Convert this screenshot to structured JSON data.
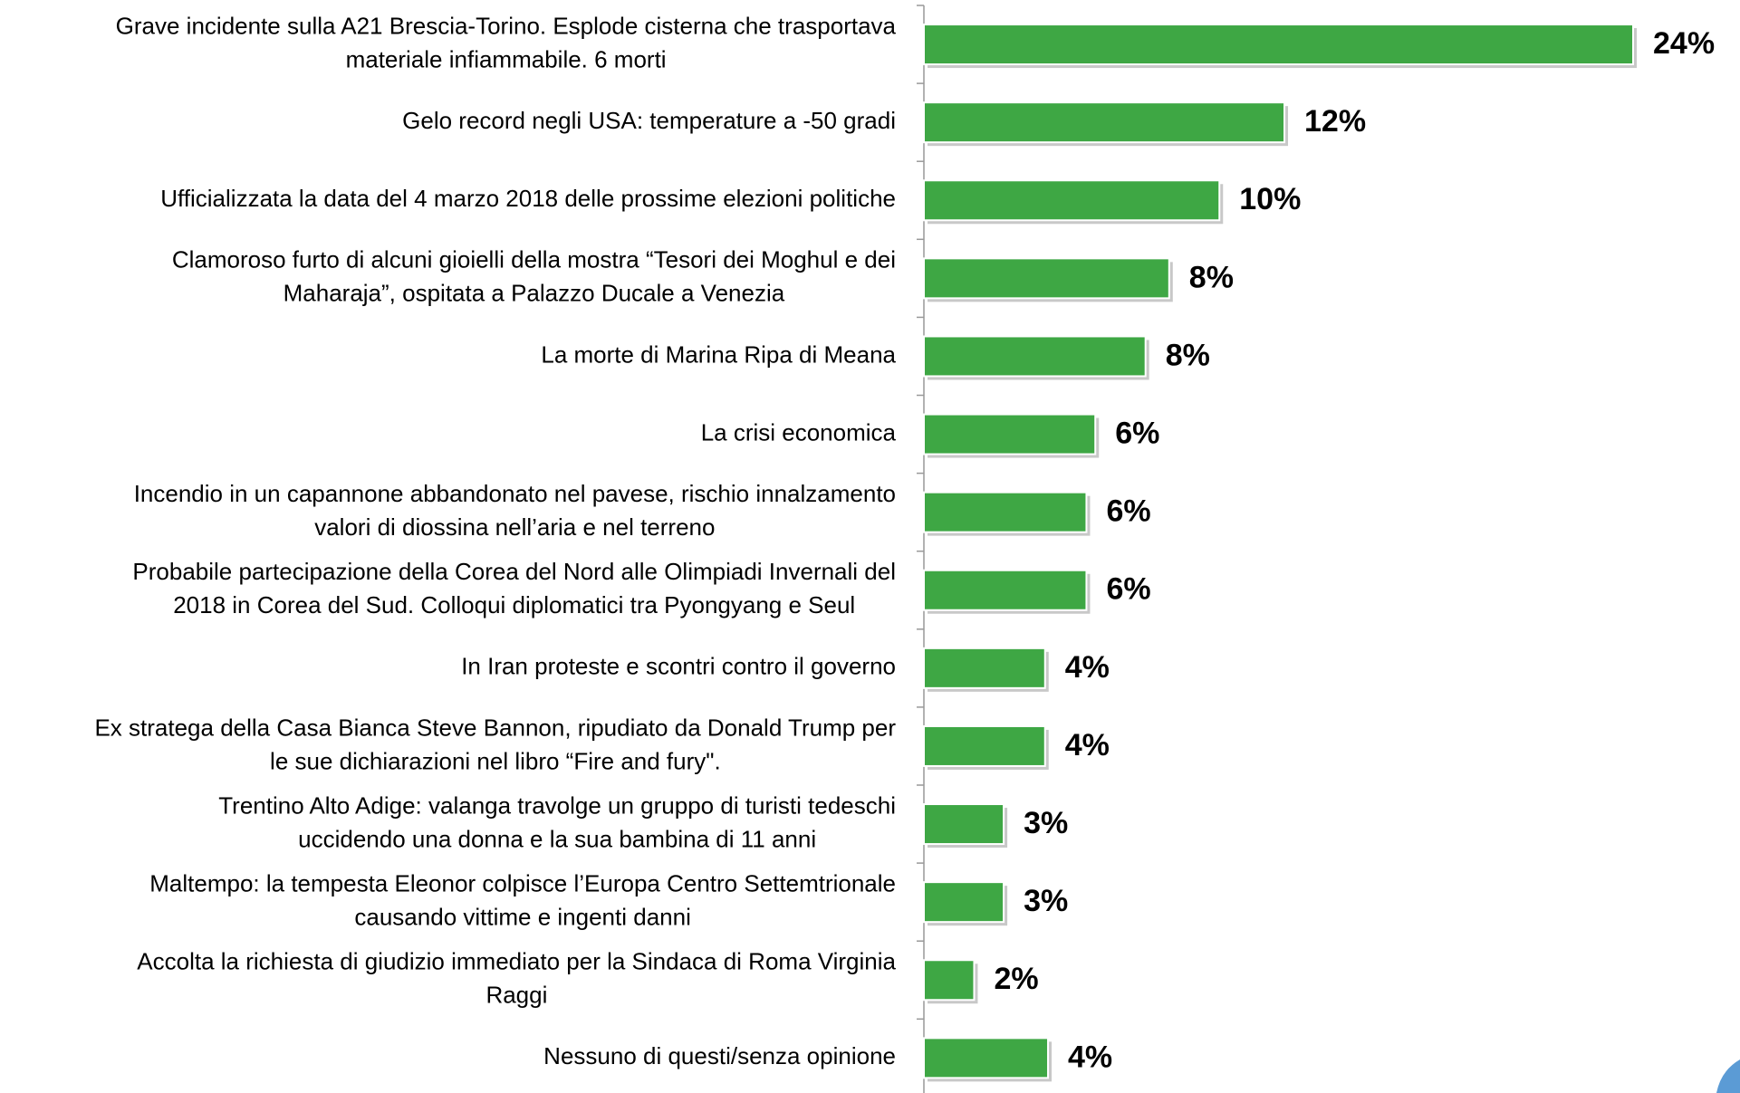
{
  "chart_data": {
    "type": "hbar",
    "categories": [
      [
        "Grave incidente sulla A21 Brescia-Torino. Esplode cisterna che trasportava",
        "materiale infiammabile. 6 morti"
      ],
      [
        "Gelo record negli USA: temperature a -50 gradi"
      ],
      [
        "Ufficializzata la data del 4 marzo 2018 delle prossime elezioni politiche"
      ],
      [
        "Clamoroso furto di alcuni gioielli della mostra “Tesori dei Moghul e dei",
        "Maharaja”, ospitata a Palazzo Ducale a Venezia"
      ],
      [
        "La morte di Marina Ripa di Meana"
      ],
      [
        "La crisi economica"
      ],
      [
        "Incendio in un capannone abbandonato nel pavese, rischio innalzamento",
        "valori di diossina nell’aria e nel terreno"
      ],
      [
        "Probabile partecipazione della Corea del Nord alle Olimpiadi Invernali del",
        "2018 in Corea del Sud. Colloqui diplomatici tra Pyongyang e Seul"
      ],
      [
        "In Iran proteste e scontri contro il governo"
      ],
      [
        "Ex stratega della Casa Bianca Steve Bannon, ripudiato da Donald Trump per",
        "le sue dichiarazioni nel libro “Fire and fury\"."
      ],
      [
        "Trentino Alto Adige: valanga travolge un gruppo di turisti tedeschi",
        "uccidendo una donna e la sua bambina di 11 anni"
      ],
      [
        "Maltempo: la tempesta Eleonor colpisce l’Europa Centro Settemtrionale",
        "causando vittime e ingenti danni"
      ],
      [
        "Accolta la richiesta di giudizio immediato per la Sindaca di Roma Virginia",
        "Raggi"
      ],
      [
        "Nessuno di questi/senza opinione"
      ]
    ],
    "values": [
      24,
      12.2,
      10,
      8.3,
      7.5,
      5.8,
      5.5,
      5.5,
      4.1,
      4.1,
      2.7,
      2.7,
      1.7,
      4.2
    ],
    "value_labels": [
      "24%",
      "12%",
      "10%",
      "8%",
      "8%",
      "6%",
      "6%",
      "6%",
      "4%",
      "4%",
      "3%",
      "3%",
      "2%",
      "4%"
    ],
    "color": "#3ea744"
  }
}
